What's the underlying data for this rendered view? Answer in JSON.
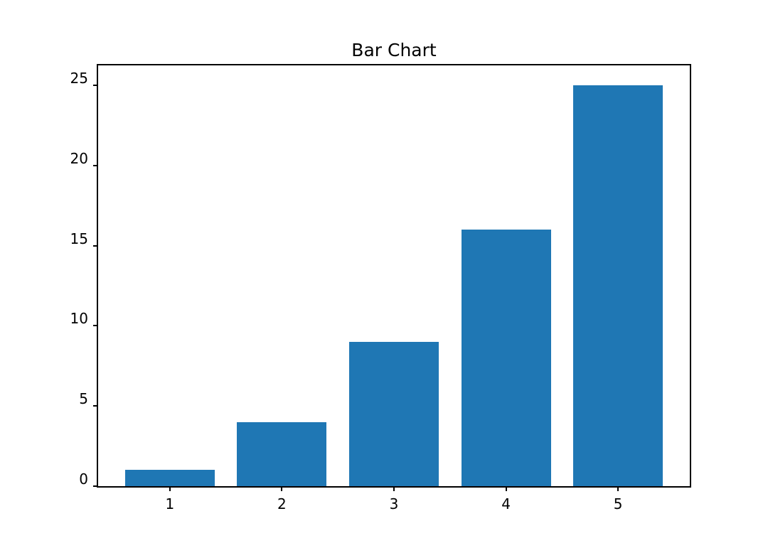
{
  "chart_data": {
    "type": "bar",
    "title": "Bar Chart",
    "xlabel": "",
    "ylabel": "",
    "categories": [
      1,
      2,
      3,
      4,
      5
    ],
    "values": [
      1,
      4,
      9,
      16,
      25
    ],
    "xticks": [
      1,
      2,
      3,
      4,
      5
    ],
    "yticks": [
      0,
      5,
      10,
      15,
      20,
      25
    ],
    "xlim": [
      0.36,
      5.64
    ],
    "ylim": [
      0,
      26.25
    ],
    "bar_width": 0.8,
    "bar_color": "#1f77b4",
    "axes_color": "#000000",
    "background_color": "#ffffff",
    "grid": false,
    "legend": null
  }
}
